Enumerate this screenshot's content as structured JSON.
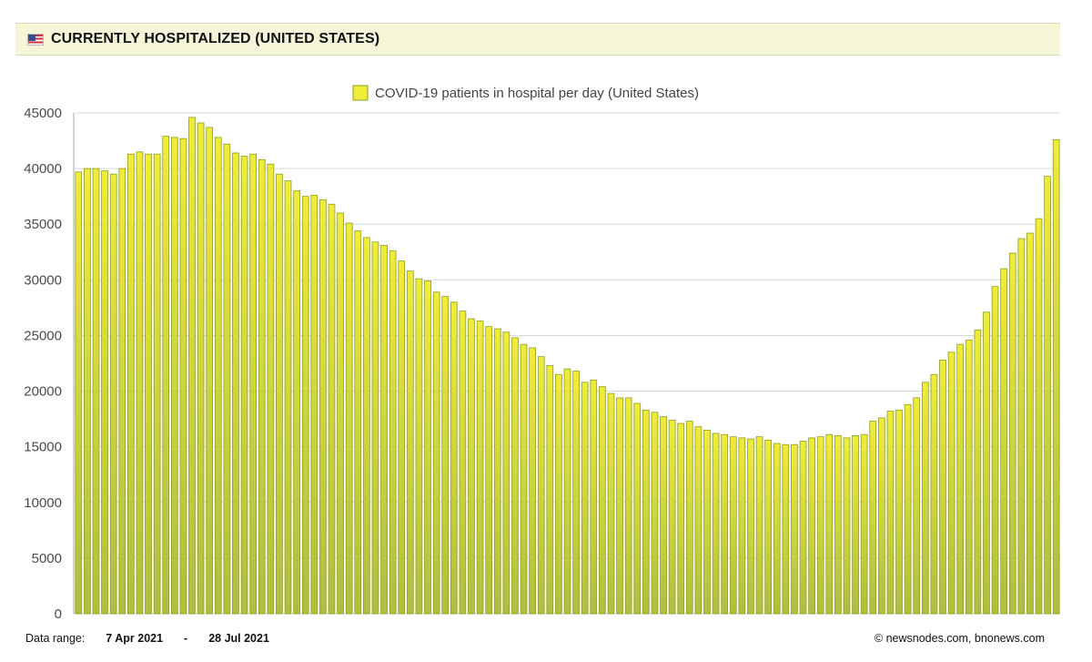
{
  "header": {
    "title": "CURRENTLY HOSPITALIZED (UNITED STATES)",
    "flag_icon": "us-flag-icon"
  },
  "footer": {
    "range_label": "Data range:",
    "range_start": "7 Apr 2021",
    "range_separator": "-",
    "range_end": "28 Jul 2021",
    "credit": "©  newsnodes.com, bnonews.com"
  },
  "chart_data": {
    "type": "bar",
    "legend": {
      "label": "COVID-19 patients in hospital per day (United States)",
      "position": "top-center"
    },
    "ylim": [
      0,
      45000
    ],
    "yticks": [
      "45000",
      "40000",
      "35000",
      "30000",
      "25000",
      "20000",
      "15000",
      "10000",
      "5000",
      "0"
    ],
    "grid": true,
    "colors": {
      "bar_top": "#efec3a",
      "bar_bottom": "#b0be3f",
      "bar_border": "#8f9f1f",
      "grid": "#d9d9d9",
      "axis": "#aaaaaa"
    },
    "values": [
      39700,
      40000,
      40000,
      39800,
      39500,
      40000,
      41300,
      41500,
      41300,
      41300,
      42900,
      42800,
      42700,
      44600,
      44100,
      43700,
      42800,
      42200,
      41400,
      41100,
      41300,
      40800,
      40400,
      39500,
      38900,
      38000,
      37500,
      37600,
      37200,
      36800,
      36000,
      35100,
      34400,
      33800,
      33400,
      33100,
      32600,
      31700,
      30800,
      30100,
      29900,
      28900,
      28500,
      28000,
      27200,
      26500,
      26300,
      25800,
      25600,
      25300,
      24800,
      24200,
      23900,
      23100,
      22300,
      21500,
      22000,
      21800,
      20800,
      21000,
      20400,
      19800,
      19400,
      19400,
      18900,
      18300,
      18100,
      17700,
      17400,
      17100,
      17300,
      16800,
      16500,
      16200,
      16100,
      15900,
      15800,
      15700,
      15900,
      15600,
      15300,
      15200,
      15200,
      15500,
      15800,
      15900,
      16100,
      16000,
      15800,
      16000,
      16100,
      17300,
      17600,
      18200,
      18300,
      18800,
      19400,
      20800,
      21500,
      22800,
      23500,
      24200,
      24600,
      25500,
      27100,
      29400,
      31000,
      32400,
      33700,
      34200,
      35500,
      39300,
      42600
    ]
  }
}
